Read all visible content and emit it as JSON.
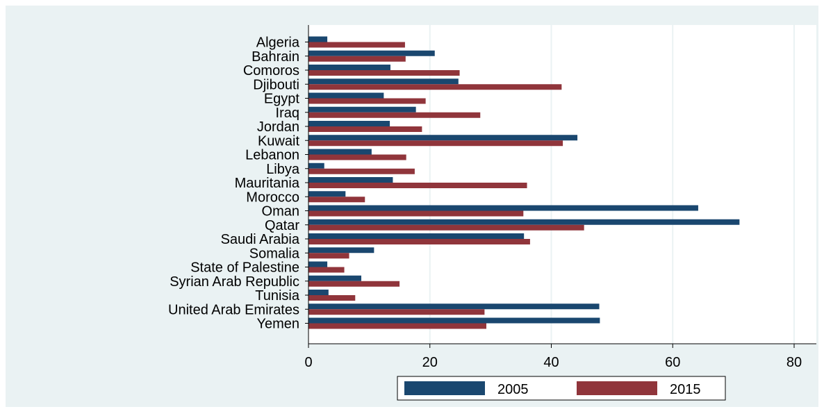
{
  "chart_data": {
    "type": "bar",
    "orientation": "horizontal",
    "categories": [
      "Algeria",
      "Bahrain",
      "Comoros",
      "Djibouti",
      "Egypt",
      "Iraq",
      "Jordan",
      "Kuwait",
      "Lebanon",
      "Libya",
      "Mauritania",
      "Morocco",
      "Oman",
      "Qatar",
      "Saudi Arabia",
      "Somalia",
      "State of Palestine",
      "Syrian Arab Republic",
      "Tunisia",
      "United Arab Emirates",
      "Yemen"
    ],
    "series": [
      {
        "name": "2005",
        "color": "#1a476f",
        "values": [
          3.1,
          20.8,
          13.5,
          24.7,
          12.4,
          17.7,
          13.4,
          44.3,
          10.4,
          2.6,
          13.9,
          6.1,
          64.2,
          71.0,
          35.5,
          10.8,
          3.1,
          8.7,
          3.3,
          47.9,
          48.0
        ]
      },
      {
        "name": "2015",
        "color": "#90353b",
        "values": [
          15.9,
          16.0,
          24.9,
          41.7,
          19.3,
          28.3,
          18.7,
          41.9,
          16.1,
          17.5,
          36.0,
          9.3,
          35.4,
          45.4,
          36.5,
          6.7,
          5.9,
          15.0,
          7.7,
          29.0,
          29.3
        ]
      }
    ],
    "xlim": [
      0,
      80
    ],
    "xticks": [
      0,
      20,
      40,
      60,
      80
    ],
    "grid": true,
    "legend_position": "bottom"
  },
  "colors": {
    "outer_background": "#eaf2f3",
    "plot_background": "#ffffff",
    "gridline": "#eaf2f3"
  }
}
